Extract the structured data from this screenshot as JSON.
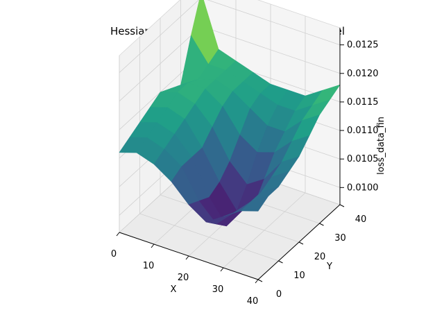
{
  "chart_data": {
    "type": "surface3d",
    "title": "Hessian Loss landscape surface of the model",
    "xlabel": "X",
    "ylabel": "Y",
    "zlabel": "loss_data_fin",
    "xlim": [
      0,
      40
    ],
    "ylim": [
      0,
      40
    ],
    "zlim": [
      0.0097,
      0.0128
    ],
    "x_ticks": [
      "0",
      "10",
      "20",
      "30",
      "40"
    ],
    "y_ticks": [
      "0",
      "10",
      "20",
      "30",
      "40"
    ],
    "z_ticks": [
      "0.0100",
      "0.0105",
      "0.0110",
      "0.0115",
      "0.0120",
      "0.0125"
    ],
    "grid": true,
    "colormaps": [
      "viridis",
      "coolwarm"
    ],
    "surface": {
      "x": [
        0,
        5,
        10,
        15,
        20,
        25,
        30,
        35,
        40
      ],
      "y": [
        0,
        5,
        10,
        15,
        20,
        25,
        30,
        35,
        40
      ],
      "z": [
        [
          0.0111,
          0.0112,
          0.0111,
          0.0109,
          0.0106,
          0.0104,
          0.0106,
          0.0108,
          0.0109
        ],
        [
          0.0112,
          0.0113,
          0.0112,
          0.011,
          0.0105,
          0.0102,
          0.0105,
          0.0108,
          0.011
        ],
        [
          0.0113,
          0.0114,
          0.0113,
          0.011,
          0.0104,
          0.01,
          0.0104,
          0.0108,
          0.011
        ],
        [
          0.0114,
          0.0115,
          0.0114,
          0.011,
          0.0105,
          0.0101,
          0.0103,
          0.0109,
          0.0111
        ],
        [
          0.0115,
          0.0116,
          0.0115,
          0.0112,
          0.0107,
          0.0104,
          0.0106,
          0.011,
          0.0112
        ],
        [
          0.0114,
          0.0116,
          0.0116,
          0.0114,
          0.011,
          0.0108,
          0.0109,
          0.0112,
          0.0114
        ],
        [
          0.0113,
          0.0115,
          0.0116,
          0.0115,
          0.0113,
          0.0111,
          0.0111,
          0.0114,
          0.0116
        ],
        [
          0.012,
          0.0116,
          0.0116,
          0.0115,
          0.0114,
          0.0113,
          0.0113,
          0.0115,
          0.0117
        ],
        [
          0.0126,
          0.0117,
          0.0116,
          0.0115,
          0.0114,
          0.0114,
          0.0114,
          0.0116,
          0.0118
        ]
      ]
    }
  }
}
